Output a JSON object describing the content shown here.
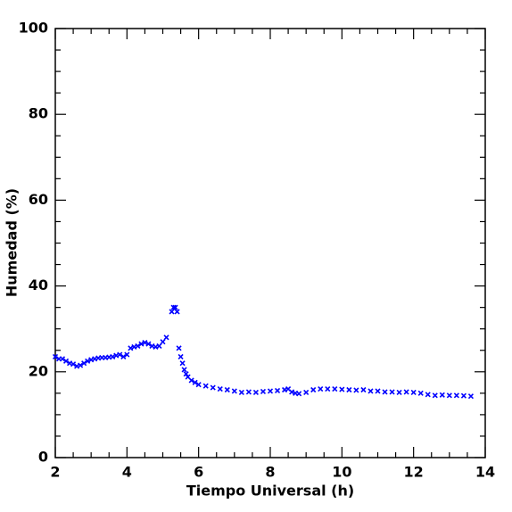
{
  "chart_data": {
    "type": "scatter",
    "x_label": "Tiempo Universal (h)",
    "y_label": "Humedad (%)",
    "color": "#0000ff",
    "xlim": [
      2,
      14
    ],
    "xticks": [
      2,
      4,
      6,
      8,
      10,
      12,
      14
    ],
    "ylim": [
      0,
      100
    ],
    "yticks": [
      0,
      20,
      40,
      60,
      80,
      100
    ],
    "x": [
      2.0,
      2.1,
      2.2,
      2.3,
      2.4,
      2.5,
      2.6,
      2.7,
      2.8,
      2.9,
      3.0,
      3.1,
      3.2,
      3.3,
      3.4,
      3.5,
      3.6,
      3.7,
      3.8,
      3.9,
      4.0,
      4.1,
      4.2,
      4.3,
      4.4,
      4.5,
      4.6,
      4.7,
      4.8,
      4.9,
      5.0,
      5.1,
      5.25,
      5.3,
      5.35,
      5.4,
      5.45,
      5.5,
      5.55,
      5.6,
      5.65,
      5.7,
      5.8,
      5.9,
      6.0,
      6.2,
      6.4,
      6.6,
      6.8,
      7.0,
      7.2,
      7.4,
      7.6,
      7.8,
      8.0,
      8.2,
      8.4,
      8.5,
      8.6,
      8.7,
      8.8,
      9.0,
      9.2,
      9.4,
      9.6,
      9.8,
      10.0,
      10.2,
      10.4,
      10.6,
      10.8,
      11.0,
      11.2,
      11.4,
      11.6,
      11.8,
      12.0,
      12.2,
      12.4,
      12.6,
      12.8,
      13.0,
      13.2,
      13.4,
      13.6
    ],
    "values": [
      23.5,
      23,
      23,
      22.5,
      22,
      21.8,
      21.3,
      21.5,
      22,
      22.5,
      22.8,
      23,
      23.2,
      23.3,
      23.3,
      23.4,
      23.5,
      23.8,
      24,
      23.5,
      24,
      25.5,
      25.8,
      26,
      26.5,
      26.8,
      26.5,
      26,
      25.8,
      26,
      27,
      28,
      34,
      35,
      35,
      34,
      25.5,
      23.5,
      22,
      20.5,
      19.5,
      18.8,
      18,
      17.5,
      17,
      16.7,
      16.3,
      16,
      15.8,
      15.5,
      15.2,
      15.3,
      15.2,
      15.4,
      15.5,
      15.6,
      15.8,
      16,
      15.3,
      15,
      14.9,
      15.2,
      15.8,
      16,
      16,
      16,
      15.9,
      15.8,
      15.7,
      15.8,
      15.5,
      15.5,
      15.3,
      15.3,
      15.2,
      15.3,
      15.2,
      15,
      14.7,
      14.5,
      14.6,
      14.5,
      14.5,
      14.4,
      14.3
    ]
  }
}
